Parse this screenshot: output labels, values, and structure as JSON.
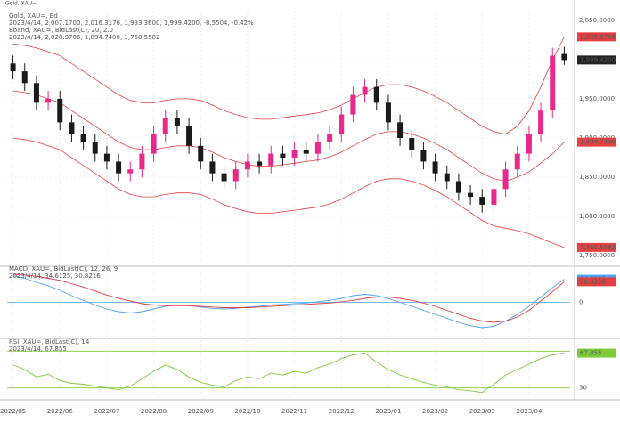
{
  "chart_data": [
    {
      "type": "candlestick",
      "title": "Gold, XAU=",
      "legend_lines": [
        "Gold, XAU=, Bd",
        "2023/4/14, 2,007.1700, 2,016.3176, 1,993.3600, 1,999.4200, -8.5504, -0.42%",
        "Bband, XAU=, BidLast(C), 20, 2.0",
        "2023/4/14, 2,028.9706, 1,894.7400, 1,760.5582"
      ],
      "legend_colors": [
        "#333333",
        "#333333",
        "#e03030",
        "#e03030"
      ],
      "categories": [
        "2022/05",
        null,
        null,
        null,
        "2022/06",
        null,
        null,
        null,
        "2022/07",
        null,
        null,
        null,
        "2022/08",
        null,
        null,
        null,
        "2022/09",
        null,
        null,
        null,
        "2022/10",
        null,
        null,
        null,
        "2022/11",
        null,
        null,
        null,
        "2022/12",
        null,
        null,
        null,
        "2023/01",
        null,
        null,
        null,
        "2023/02",
        null,
        null,
        null,
        "2023/03",
        null,
        null,
        null,
        "2023/04",
        null,
        null,
        null
      ],
      "open": [
        1995,
        1985,
        1970,
        1945,
        1950,
        1920,
        1905,
        1895,
        1880,
        1870,
        1855,
        1860,
        1880,
        1905,
        1925,
        1915,
        1890,
        1870,
        1855,
        1845,
        1860,
        1870,
        1865,
        1880,
        1875,
        1885,
        1880,
        1895,
        1905,
        1930,
        1955,
        1965,
        1945,
        1920,
        1900,
        1885,
        1870,
        1855,
        1845,
        1830,
        1825,
        1815,
        1835,
        1860,
        1880,
        1905,
        1935,
        2007.17
      ],
      "high": [
        2005,
        1995,
        1980,
        1960,
        1960,
        1930,
        1915,
        1905,
        1890,
        1880,
        1870,
        1890,
        1915,
        1935,
        1935,
        1925,
        1900,
        1880,
        1865,
        1870,
        1880,
        1880,
        1890,
        1890,
        1895,
        1895,
        1905,
        1915,
        1940,
        1965,
        1975,
        1975,
        1955,
        1930,
        1910,
        1895,
        1880,
        1865,
        1855,
        1840,
        1835,
        1845,
        1870,
        1890,
        1915,
        1945,
        2015,
        2016.3176
      ],
      "low": [
        1975,
        1960,
        1935,
        1935,
        1910,
        1895,
        1885,
        1870,
        1860,
        1845,
        1845,
        1850,
        1870,
        1895,
        1905,
        1880,
        1860,
        1845,
        1835,
        1835,
        1850,
        1855,
        1855,
        1865,
        1865,
        1870,
        1870,
        1885,
        1895,
        1920,
        1945,
        1935,
        1910,
        1890,
        1875,
        1860,
        1845,
        1835,
        1820,
        1815,
        1805,
        1805,
        1825,
        1850,
        1870,
        1895,
        1925,
        1993.36
      ],
      "close": [
        1985,
        1970,
        1945,
        1950,
        1920,
        1905,
        1895,
        1880,
        1870,
        1855,
        1860,
        1880,
        1905,
        1925,
        1915,
        1890,
        1870,
        1855,
        1845,
        1860,
        1870,
        1865,
        1880,
        1875,
        1885,
        1880,
        1895,
        1905,
        1930,
        1955,
        1965,
        1945,
        1920,
        1900,
        1885,
        1870,
        1855,
        1845,
        1830,
        1825,
        1815,
        1835,
        1860,
        1880,
        1905,
        1935,
        2005,
        1999.42
      ],
      "up_color": "#e8288a",
      "down_color": "#1a1a1a",
      "bands": {
        "color": "#e84040",
        "upper": [
          2020,
          2018,
          2015,
          2010,
          2005,
          1995,
          1985,
          1975,
          1965,
          1955,
          1948,
          1945,
          1945,
          1948,
          1950,
          1950,
          1948,
          1942,
          1935,
          1930,
          1926,
          1924,
          1924,
          1926,
          1928,
          1930,
          1932,
          1936,
          1942,
          1950,
          1958,
          1965,
          1968,
          1968,
          1965,
          1960,
          1953,
          1945,
          1935,
          1925,
          1915,
          1908,
          1905,
          1915,
          1935,
          1965,
          2000,
          2028.9706
        ],
        "middle": [
          1960,
          1958,
          1955,
          1950,
          1945,
          1935,
          1925,
          1915,
          1905,
          1895,
          1888,
          1885,
          1885,
          1888,
          1890,
          1890,
          1888,
          1882,
          1875,
          1870,
          1866,
          1864,
          1864,
          1866,
          1868,
          1870,
          1872,
          1876,
          1882,
          1890,
          1898,
          1905,
          1908,
          1908,
          1905,
          1900,
          1893,
          1885,
          1875,
          1865,
          1855,
          1848,
          1845,
          1850,
          1857,
          1868,
          1880,
          1894.74
        ],
        "lower": [
          1900,
          1898,
          1895,
          1890,
          1885,
          1875,
          1865,
          1855,
          1845,
          1835,
          1828,
          1825,
          1825,
          1828,
          1830,
          1830,
          1828,
          1822,
          1815,
          1810,
          1806,
          1804,
          1804,
          1806,
          1808,
          1810,
          1812,
          1816,
          1822,
          1830,
          1838,
          1845,
          1848,
          1848,
          1845,
          1840,
          1833,
          1825,
          1815,
          1805,
          1795,
          1788,
          1785,
          1782,
          1778,
          1772,
          1766,
          1760.5582
        ],
        "upper_label": "2,028.9706",
        "middle_label": "1,894.7400",
        "lower_label": "1,760.5582"
      },
      "close_label": "1,999.4200",
      "ylim": [
        1740,
        2060
      ],
      "yticks": [
        {
          "value": 1750,
          "label": "1,750.0000"
        },
        {
          "value": 1800,
          "label": "1,800.0000"
        },
        {
          "value": 1850,
          "label": "1,850.0000"
        },
        {
          "value": 1900,
          "label": "1,900.0000"
        },
        {
          "value": 1950,
          "label": "1,950.0000"
        },
        {
          "value": 2000,
          "label": "2,000.0000"
        },
        {
          "value": 2050,
          "label": "2,050.0000"
        }
      ],
      "grid": true
    },
    {
      "type": "line",
      "legend_lines": [
        "MACD, XAU=, BidLast(C), 12, 26, 9",
        "2023/4/14, 34.6125, 30.8216"
      ],
      "legend_colors": [
        "#3a8fe0",
        "#3a8fe0"
      ],
      "series": [
        {
          "color": "#4aa3ff",
          "values": [
            40,
            36,
            30,
            25,
            18,
            10,
            3,
            -4,
            -10,
            -14,
            -16,
            -14,
            -10,
            -6,
            -4,
            -5,
            -7,
            -9,
            -10,
            -9,
            -7,
            -6,
            -4,
            -3,
            -2,
            -1,
            1,
            3,
            6,
            10,
            12,
            10,
            6,
            0,
            -6,
            -12,
            -18,
            -24,
            -30,
            -35,
            -38,
            -36,
            -28,
            -18,
            -6,
            8,
            22,
            34.6125
          ]
        },
        {
          "color": "#e04040",
          "values": [
            42,
            41,
            39,
            36,
            33,
            28,
            23,
            17,
            11,
            6,
            2,
            -2,
            -4,
            -5,
            -5,
            -5,
            -6,
            -7,
            -8,
            -8,
            -8,
            -7,
            -6,
            -5,
            -4,
            -3,
            -2,
            -1,
            1,
            3,
            6,
            8,
            8,
            6,
            3,
            -1,
            -6,
            -12,
            -18,
            -24,
            -28,
            -30,
            -28,
            -22,
            -12,
            2,
            16,
            30.8216
          ]
        }
      ],
      "ylim": [
        -50,
        50
      ],
      "yticks": [
        0
      ],
      "grid_color": "#4aa3ff"
    },
    {
      "type": "line",
      "legend_lines": [
        "RSI, XAU=, BidLast(C), 14",
        "2023/4/14, 67.855"
      ],
      "legend_colors": [
        "#6cbf2a",
        "#6cbf2a"
      ],
      "series": [
        {
          "color": "#7ccc3a",
          "values": [
            55,
            50,
            42,
            45,
            38,
            35,
            34,
            32,
            30,
            28,
            32,
            40,
            48,
            55,
            50,
            42,
            36,
            33,
            31,
            38,
            42,
            40,
            46,
            44,
            48,
            46,
            52,
            56,
            62,
            66,
            68,
            58,
            50,
            44,
            40,
            36,
            33,
            31,
            28,
            27,
            25,
            34,
            44,
            50,
            56,
            62,
            66,
            67.855
          ]
        }
      ],
      "ylim": [
        20,
        80
      ],
      "yticks": [
        30,
        70
      ],
      "grid_color": "#7ccc3a"
    }
  ]
}
